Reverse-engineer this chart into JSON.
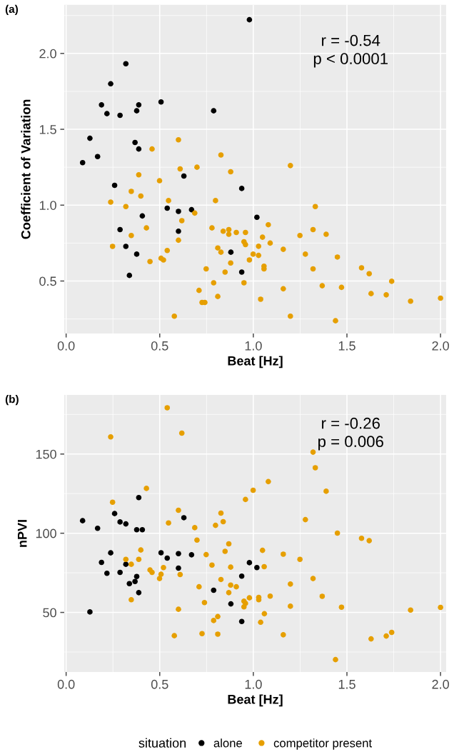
{
  "chart_data": [
    {
      "type": "scatter",
      "title": "(a)",
      "xlabel": "Beat [Hz]",
      "ylabel": "Coefficient of Variation",
      "xlim": [
        -0.01,
        2.03
      ],
      "ylim": [
        0.154,
        2.32
      ],
      "xticks": [
        {
          "value": 0,
          "label": "0.0"
        },
        {
          "value": 0.5,
          "label": "0.5"
        },
        {
          "value": 1,
          "label": "1.0"
        },
        {
          "value": 1.5,
          "label": "1.5"
        },
        {
          "value": 2,
          "label": "2.0"
        }
      ],
      "yticks": [
        {
          "value": 0.5,
          "label": "0.5"
        },
        {
          "value": 1,
          "label": "1.0"
        },
        {
          "value": 1.5,
          "label": "1.5"
        },
        {
          "value": 2,
          "label": "2.0"
        }
      ],
      "grid": true,
      "marker": "circle",
      "annotations": [
        "r = -0.54\np < 0.0001"
      ],
      "series": [
        {
          "color": "#000000",
          "x": [
            0.979,
            0.319,
            0.238,
            0.189,
            0.388,
            0.507,
            0.218,
            0.288,
            0.377,
            0.788,
            0.127,
            0.368,
            0.388,
            0.168,
            0.088,
            0.629,
            0.259,
            0.938,
            0.54,
            0.6,
            0.67,
            0.407,
            1.019,
            0.288,
            0.6,
            0.319,
            0.377,
            0.88,
            0.938,
            0.338
          ],
          "values": [
            2.222,
            1.932,
            1.8,
            1.661,
            1.661,
            1.68,
            1.603,
            1.592,
            1.622,
            1.622,
            1.441,
            1.413,
            1.37,
            1.32,
            1.28,
            1.192,
            1.131,
            1.11,
            0.98,
            0.959,
            0.97,
            0.929,
            0.92,
            0.839,
            0.828,
            0.728,
            0.677,
            0.69,
            0.559,
            0.537
          ]
        },
        {
          "color": "#e69f00",
          "x": [
            0.6,
            0.459,
            0.827,
            0.609,
            0.699,
            0.879,
            0.388,
            0.499,
            0.348,
            0.399,
            0.238,
            0.547,
            0.798,
            0.319,
            0.687,
            0.618,
            0.429,
            0.779,
            0.839,
            0.869,
            0.869,
            0.909,
            0.958,
            0.348,
            0.6,
            0.95,
            0.958,
            0.248,
            0.81,
            0.827,
            0.54,
            0.507,
            0.52,
            0.448,
            0.879,
            0.999,
            0.979,
            1.028,
            1.028,
            0.849,
            0.748,
            0.788,
            0.95,
            0.71,
            0.81,
            0.726,
            0.741,
            0.578,
            1.049,
            1.039,
            1.198,
            1.331,
            1.08,
            1.319,
            1.249,
            1.389,
            1.09,
            1.16,
            1.278,
            1.449,
            1.057,
            1.057,
            1.319,
            1.578,
            1.619,
            1.739,
            1.368,
            1.471,
            1.16,
            1.629,
            1.71,
            1.84,
            2.0,
            1.198,
            1.439
          ],
          "values": [
            1.431,
            1.37,
            1.331,
            1.239,
            1.25,
            1.22,
            1.2,
            1.161,
            1.091,
            1.06,
            1.02,
            1.03,
            1.03,
            0.991,
            0.948,
            0.898,
            0.85,
            0.85,
            0.828,
            0.839,
            0.808,
            0.82,
            0.82,
            0.8,
            0.769,
            0.759,
            0.74,
            0.728,
            0.718,
            0.69,
            0.701,
            0.65,
            0.639,
            0.628,
            0.619,
            0.677,
            0.639,
            0.669,
            0.729,
            0.559,
            0.58,
            0.488,
            0.488,
            0.438,
            0.398,
            0.359,
            0.359,
            0.268,
            0.789,
            0.38,
            1.261,
            0.991,
            0.871,
            0.839,
            0.8,
            0.808,
            0.75,
            0.709,
            0.677,
            0.658,
            0.598,
            0.58,
            0.58,
            0.587,
            0.548,
            0.498,
            0.469,
            0.458,
            0.449,
            0.417,
            0.409,
            0.367,
            0.387,
            0.268,
            0.238
          ]
        }
      ]
    },
    {
      "type": "scatter",
      "title": "(b)",
      "xlabel": "Beat [Hz]",
      "ylabel": "nPVI",
      "xlim": [
        -0.01,
        2.03
      ],
      "ylim": [
        12.4,
        187.3
      ],
      "xticks": [
        {
          "value": 0,
          "label": "0.0"
        },
        {
          "value": 0.5,
          "label": "0.5"
        },
        {
          "value": 1,
          "label": "1.0"
        },
        {
          "value": 1.5,
          "label": "1.5"
        },
        {
          "value": 2,
          "label": "2.0"
        }
      ],
      "yticks": [
        50,
        100,
        150
      ],
      "grid": true,
      "marker": "circle",
      "legend": "bottom",
      "legend_title": "situation",
      "annotations": [
        "r = -0.26\np = 0.006"
      ],
      "series": [
        {
          "name": "alone",
          "color": "#000000",
          "x": [
            0.088,
            0.168,
            0.259,
            0.288,
            0.319,
            0.388,
            0.377,
            0.407,
            0.238,
            0.189,
            0.218,
            0.288,
            0.319,
            0.377,
            0.368,
            0.338,
            0.388,
            0.127,
            0.629,
            0.507,
            0.54,
            0.6,
            0.67,
            0.6,
            0.788,
            0.88,
            0.938,
            0.938,
            0.979,
            1.019
          ],
          "values": [
            107.9,
            103.1,
            112.4,
            107.1,
            105.9,
            122.5,
            102.2,
            102.2,
            87.6,
            81.6,
            74.7,
            75.3,
            80.4,
            72.7,
            69.5,
            68.2,
            62.5,
            50.3,
            109.8,
            87.7,
            84.3,
            87.1,
            86.4,
            78.0,
            64.0,
            55.4,
            44.3,
            72.9,
            81.4,
            78.3
          ]
        },
        {
          "name": "competitor present",
          "color": "#e69f00",
          "x": [
            0.54,
            0.238,
            0.618,
            0.429,
            0.999,
            0.958,
            0.248,
            0.6,
            0.827,
            0.547,
            0.839,
            0.798,
            0.687,
            0.699,
            0.869,
            0.849,
            0.399,
            1.049,
            0.319,
            0.348,
            0.388,
            0.748,
            0.448,
            0.459,
            0.52,
            0.507,
            0.499,
            0.609,
            0.779,
            0.879,
            1.058,
            0.827,
            0.879,
            0.909,
            0.869,
            0.71,
            0.348,
            0.739,
            0.979,
            0.95,
            0.958,
            0.95,
            1.029,
            1.029,
            0.6,
            0.81,
            0.788,
            1.059,
            1.039,
            0.578,
            0.726,
            0.81,
            1.319,
            1.331,
            1.08,
            1.389,
            1.278,
            1.449,
            1.578,
            1.619,
            1.16,
            1.249,
            1.319,
            1.198,
            1.368,
            1.09,
            1.198,
            1.471,
            1.84,
            2.0,
            1.16,
            1.629,
            1.71,
            1.739,
            1.439
          ],
          "values": [
            179.2,
            160.8,
            163.2,
            128.3,
            127.1,
            121.3,
            119.6,
            114.5,
            112.7,
            106.5,
            107.3,
            105.0,
            103.5,
            95.7,
            93.3,
            88.6,
            89.4,
            89.2,
            83.5,
            80.4,
            83.5,
            86.5,
            76.8,
            75.3,
            78.3,
            74.1,
            71.4,
            73.9,
            79.9,
            78.6,
            78.9,
            70.8,
            67.3,
            66.2,
            62.5,
            66.2,
            58.0,
            56.2,
            59.2,
            57.1,
            55.7,
            53.5,
            59.5,
            58.0,
            52.0,
            47.4,
            44.9,
            49.2,
            43.8,
            35.3,
            36.6,
            36.3,
            151.2,
            141.3,
            132.6,
            126.5,
            108.6,
            100.1,
            96.8,
            95.3,
            86.8,
            83.5,
            71.4,
            67.9,
            60.2,
            60.3,
            53.9,
            53.3,
            51.5,
            53.2,
            35.9,
            33.3,
            35.1,
            37.4,
            20.2
          ]
        }
      ]
    }
  ]
}
